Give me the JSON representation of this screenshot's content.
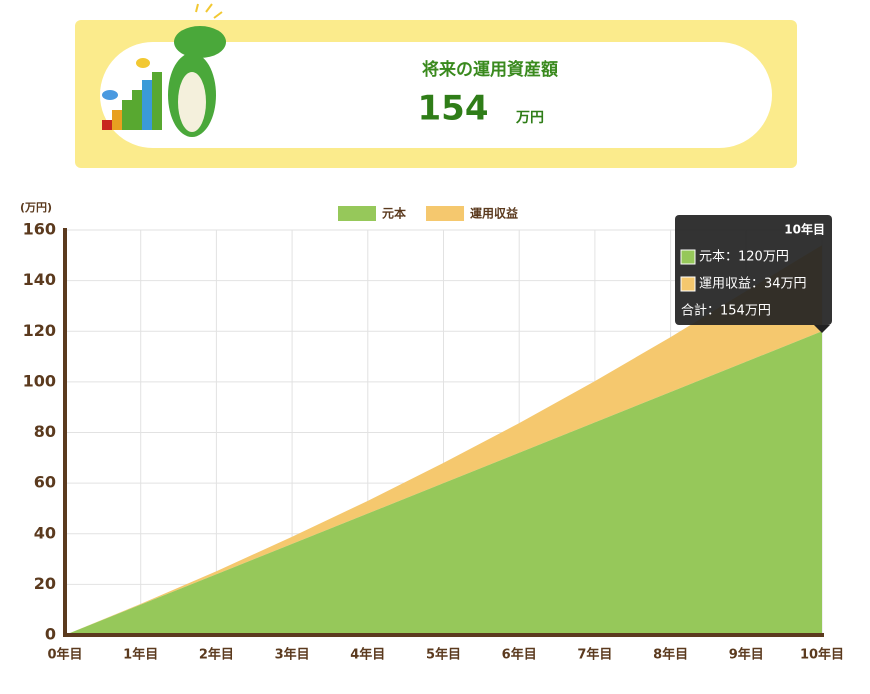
{
  "header": {
    "title": "将来の運用資産額",
    "amount": 154,
    "unit": "万円"
  },
  "chart_data": {
    "type": "area",
    "stacked": true,
    "y_label": "(万円)",
    "categories": [
      "0年目",
      "1年目",
      "2年目",
      "3年目",
      "4年目",
      "5年目",
      "6年目",
      "7年目",
      "8年目",
      "9年目",
      "10年目"
    ],
    "series": [
      {
        "name": "元本",
        "color": "#96c85a",
        "values": [
          0,
          12,
          24,
          36,
          48,
          60,
          72,
          84,
          96,
          108,
          120
        ]
      },
      {
        "name": "運用収益",
        "color": "#f5c86e",
        "values": [
          0,
          0.3,
          1.2,
          2.8,
          5,
          8,
          11.7,
          16.3,
          21.7,
          27.9,
          34
        ]
      }
    ],
    "ylim": [
      0,
      160
    ],
    "yticks": [
      0,
      20,
      40,
      60,
      80,
      100,
      120,
      140,
      160
    ],
    "grid": true,
    "legend": "top",
    "tooltip": {
      "category": 10,
      "lines": [
        "元本：120万円",
        "運用収益：34万円",
        "合計：154万円"
      ]
    }
  }
}
